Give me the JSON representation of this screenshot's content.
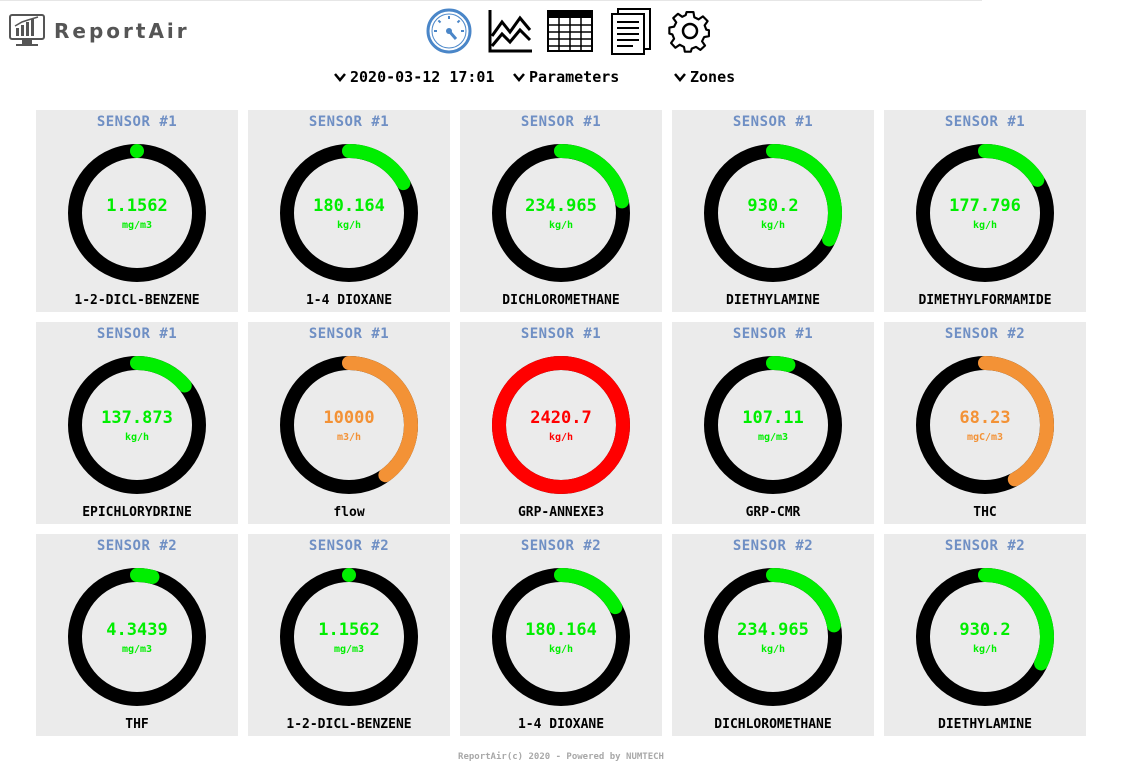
{
  "app": {
    "name": "ReportAir",
    "logo_icon": "monitor-chart-icon"
  },
  "nav": [
    {
      "icon": "gauge-icon",
      "active": true
    },
    {
      "icon": "line-chart-icon",
      "active": false
    },
    {
      "icon": "table-icon",
      "active": false
    },
    {
      "icon": "document-icon",
      "active": false
    },
    {
      "icon": "gear-icon",
      "active": false
    }
  ],
  "filters": {
    "datetime": "2020-03-12 17:01",
    "parameters": "Parameters",
    "zones": "Zones"
  },
  "colors": {
    "green": "#00ee00",
    "orange": "#f39236",
    "red": "#ff0000",
    "track": "#000000",
    "sensor_label": "#6f8fc4"
  },
  "gauges": [
    {
      "sensor": "SENSOR #1",
      "value": "1.1562",
      "unit": "mg/m3",
      "name": "1-2-DICL-BENZENE",
      "fraction": 0.0,
      "color": "green"
    },
    {
      "sensor": "SENSOR #1",
      "value": "180.164",
      "unit": "kg/h",
      "name": "1-4 DIOXANE",
      "fraction": 0.17,
      "color": "green"
    },
    {
      "sensor": "SENSOR #1",
      "value": "234.965",
      "unit": "kg/h",
      "name": "DICHLOROMETHANE",
      "fraction": 0.22,
      "color": "green"
    },
    {
      "sensor": "SENSOR #1",
      "value": "930.2",
      "unit": "kg/h",
      "name": "DIETHYLAMINE",
      "fraction": 0.32,
      "color": "green"
    },
    {
      "sensor": "SENSOR #1",
      "value": "177.796",
      "unit": "kg/h",
      "name": "DIMETHYLFORMAMIDE",
      "fraction": 0.16,
      "color": "green"
    },
    {
      "sensor": "SENSOR #1",
      "value": "137.873",
      "unit": "kg/h",
      "name": "EPICHLORYDRINE",
      "fraction": 0.14,
      "color": "green"
    },
    {
      "sensor": "SENSOR #1",
      "value": "10000",
      "unit": "m3/h",
      "name": "flow",
      "fraction": 0.4,
      "color": "orange"
    },
    {
      "sensor": "SENSOR #1",
      "value": "2420.7",
      "unit": "kg/h",
      "name": "GRP-ANNEXE3",
      "fraction": 1.0,
      "color": "red"
    },
    {
      "sensor": "SENSOR #1",
      "value": "107.11",
      "unit": "mg/m3",
      "name": "GRP-CMR",
      "fraction": 0.04,
      "color": "green"
    },
    {
      "sensor": "SENSOR #2",
      "value": "68.23",
      "unit": "mgC/m3",
      "name": "THC",
      "fraction": 0.42,
      "color": "orange"
    },
    {
      "sensor": "SENSOR #2",
      "value": "4.3439",
      "unit": "mg/m3",
      "name": "THF",
      "fraction": 0.04,
      "color": "green"
    },
    {
      "sensor": "SENSOR #2",
      "value": "1.1562",
      "unit": "mg/m3",
      "name": "1-2-DICL-BENZENE",
      "fraction": 0.0,
      "color": "green"
    },
    {
      "sensor": "SENSOR #2",
      "value": "180.164",
      "unit": "kg/h",
      "name": "1-4 DIOXANE",
      "fraction": 0.17,
      "color": "green"
    },
    {
      "sensor": "SENSOR #2",
      "value": "234.965",
      "unit": "kg/h",
      "name": "DICHLOROMETHANE",
      "fraction": 0.22,
      "color": "green"
    },
    {
      "sensor": "SENSOR #2",
      "value": "930.2",
      "unit": "kg/h",
      "name": "DIETHYLAMINE",
      "fraction": 0.32,
      "color": "green"
    }
  ],
  "footer": "ReportAir(c) 2020 - Powered by NUMTECH"
}
